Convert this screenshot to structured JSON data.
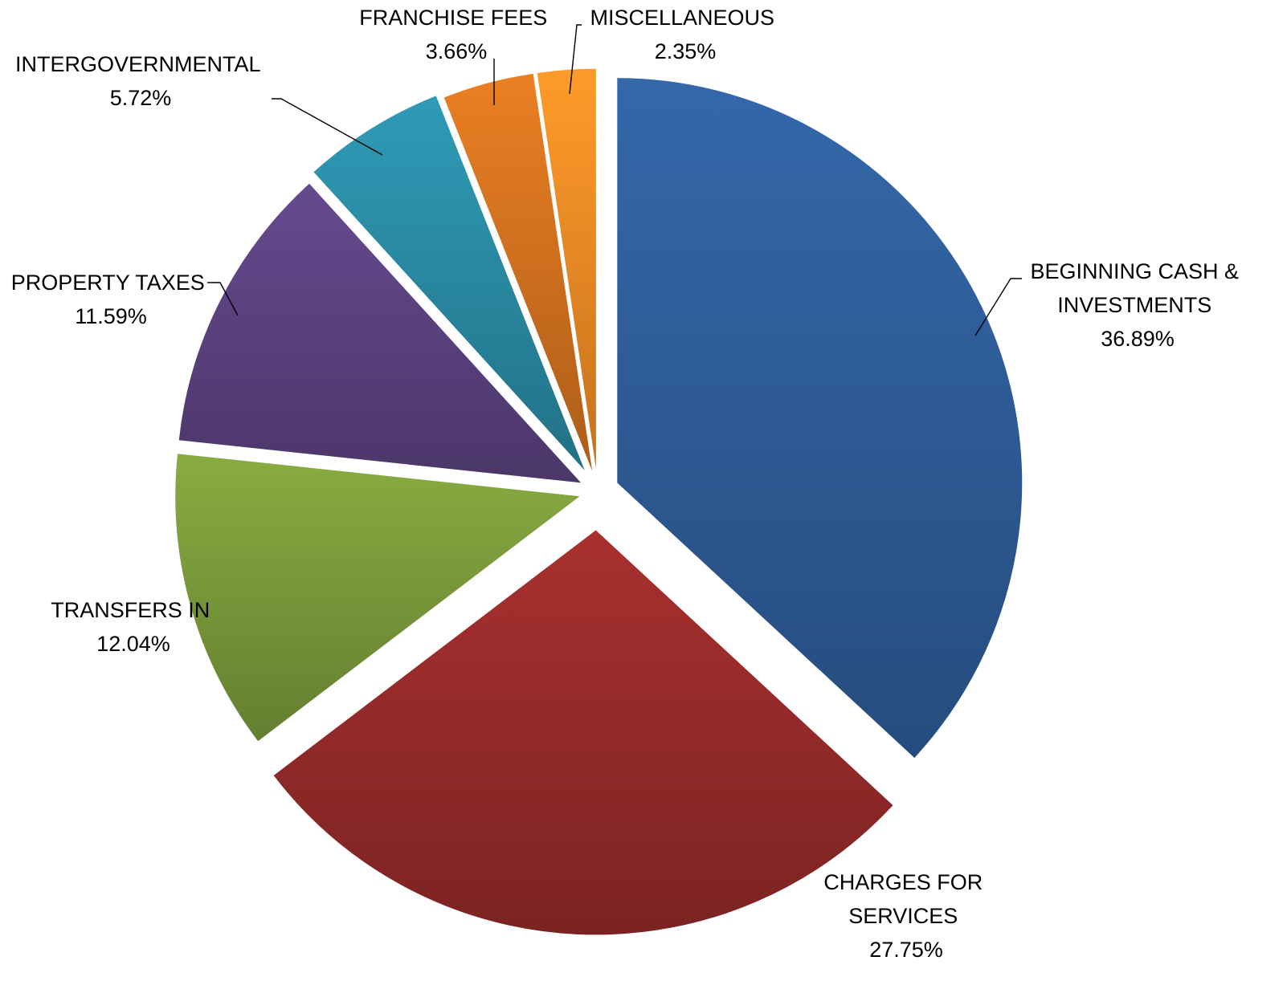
{
  "chart_data": {
    "type": "pie",
    "title": "",
    "unit": "%",
    "start_angle_deg": 0,
    "direction": "clockwise",
    "exploded": true,
    "slices": [
      {
        "label_lines": [
          "BEGINNING CASH &",
          "INVESTMENTS"
        ],
        "pct_label": "36.89%",
        "value": 36.89,
        "color": "#2e5d99"
      },
      {
        "label_lines": [
          "CHARGES FOR",
          "SERVICES"
        ],
        "pct_label": "27.75%",
        "value": 27.75,
        "color": "#962b2a"
      },
      {
        "label_lines": [
          "TRANSFERS IN"
        ],
        "pct_label": "12.04%",
        "value": 12.04,
        "color": "#7a9a3a"
      },
      {
        "label_lines": [
          "PROPERTY TAXES"
        ],
        "pct_label": "11.59%",
        "value": 11.59,
        "color": "#5b4280"
      },
      {
        "label_lines": [
          "INTERGOVERNMENTAL"
        ],
        "pct_label": "5.72%",
        "value": 5.72,
        "color": "#2a8aa3"
      },
      {
        "label_lines": [
          "FRANCHISE FEES"
        ],
        "pct_label": "3.66%",
        "value": 3.66,
        "color": "#d2711f"
      },
      {
        "label_lines": [
          "MISCELLANEOUS"
        ],
        "pct_label": "2.35%",
        "value": 2.35,
        "color": "#f28a25"
      }
    ]
  }
}
